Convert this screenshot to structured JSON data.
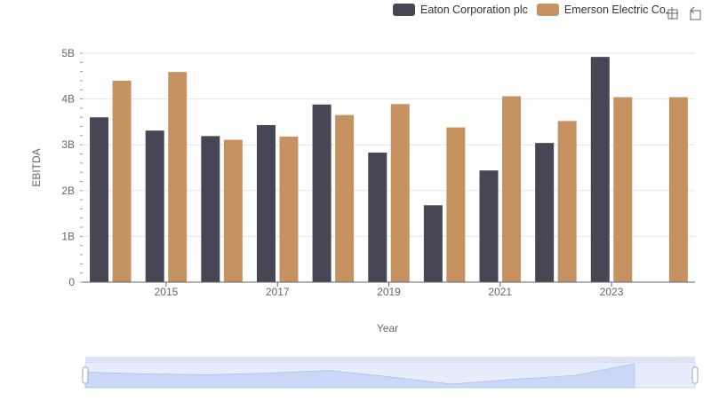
{
  "legend": {
    "items": [
      {
        "label": "Eaton Corporation plc",
        "color": "#464655"
      },
      {
        "label": "Emerson Electric Co.",
        "color": "#c79262"
      }
    ]
  },
  "toolbox": [
    "zoom-icon",
    "restore-icon"
  ],
  "chart_data": {
    "type": "bar",
    "xlabel": "Year",
    "ylabel": "EBITDA",
    "x": [
      2014,
      2015,
      2016,
      2017,
      2018,
      2019,
      2020,
      2021,
      2022,
      2023,
      2024
    ],
    "x_tick_labels": [
      "2015",
      "2017",
      "2019",
      "2021",
      "2023"
    ],
    "y_ticks": [
      "0",
      "1B",
      "2B",
      "3B",
      "4B",
      "5B"
    ],
    "ylim": [
      0,
      5000000000
    ],
    "grid": true,
    "legend_position": "top-right",
    "series": [
      {
        "name": "Eaton Corporation plc",
        "color": "#464655",
        "values": [
          3600000000,
          3310000000,
          3190000000,
          3430000000,
          3880000000,
          2830000000,
          1680000000,
          2440000000,
          3040000000,
          4920000000,
          null
        ]
      },
      {
        "name": "Emerson Electric Co.",
        "color": "#c79262",
        "values": [
          4400000000,
          4590000000,
          3110000000,
          3180000000,
          3650000000,
          3890000000,
          3380000000,
          4060000000,
          3520000000,
          4040000000,
          4040000000
        ]
      }
    ]
  }
}
